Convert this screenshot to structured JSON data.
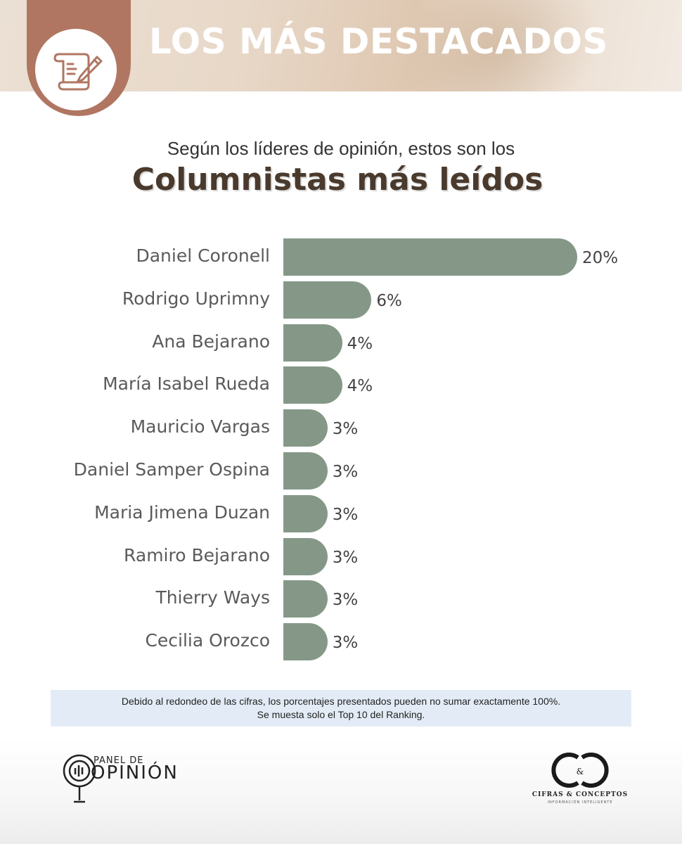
{
  "header": {
    "title": "LOS MÁS DESTACADOS",
    "icon": "document-pen-icon",
    "badge_color": "#b07662"
  },
  "subtitle": "Según los líderes de opinión, estos son los",
  "chart_data": {
    "type": "bar",
    "orientation": "horizontal",
    "title": "Columnistas más leídos",
    "categories": [
      "Daniel Coronell",
      "Rodrigo Uprimny",
      "Ana Bejarano",
      "María Isabel Rueda",
      "Mauricio Vargas",
      "Daniel Samper Ospina",
      "Maria Jimena Duzan",
      "Ramiro Bejarano",
      "Thierry Ways",
      "Cecilia Orozco"
    ],
    "values": [
      20,
      6,
      4,
      4,
      3,
      3,
      3,
      3,
      3,
      3
    ],
    "value_labels": [
      "20%",
      "6%",
      "4%",
      "4%",
      "3%",
      "3%",
      "3%",
      "3%",
      "3%",
      "3%"
    ],
    "xlabel": "",
    "ylabel": "",
    "xlim": [
      0,
      20
    ],
    "grid": false,
    "bar_color": "#859888"
  },
  "note": {
    "line1": "Debido al redondeo de las cifras, los porcentajes presentados pueden no sumar exactamente 100%.",
    "line2": "Se muesta solo el Top 10 del Ranking."
  },
  "footer": {
    "left_logo": {
      "top": "PANEL DE",
      "bottom": "OPINIÓN",
      "icon": "magnifier-microphone-icon"
    },
    "right_logo": {
      "monogram": "C&C",
      "name": "CIFRAS & CONCEPTOS",
      "tagline": "INFORMACIÓN INTELIGENTE"
    }
  }
}
